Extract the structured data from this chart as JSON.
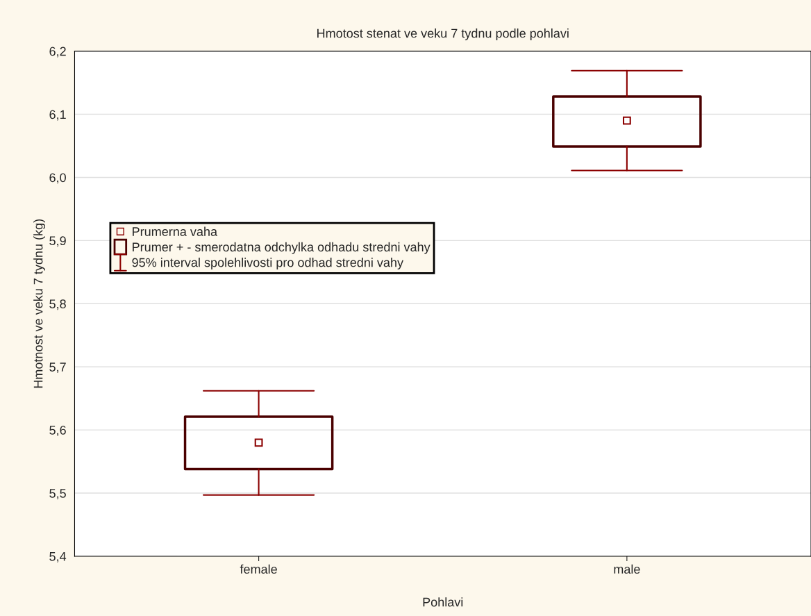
{
  "chart_data": {
    "type": "box",
    "title": "Hmotost stenat ve veku 7 tydnu podle pohlavi",
    "xlabel": "Pohlavi",
    "ylabel": "Hmotnost ve veku 7 tydnu (kg)",
    "categories": [
      "female",
      "male"
    ],
    "boxes": [
      {
        "low": 5.497,
        "q1": 5.538,
        "q3": 5.621,
        "high": 5.662,
        "mean": 5.58
      },
      {
        "low": 6.011,
        "q1": 6.049,
        "q3": 6.128,
        "high": 6.169,
        "mean": 6.09
      }
    ],
    "color": "#4a0000",
    "ylim": [
      5.4,
      6.2
    ],
    "yticks": [
      {
        "value": 5.4,
        "label": "5,4"
      },
      {
        "value": 5.5,
        "label": "5,5"
      },
      {
        "value": 5.6,
        "label": "5,6"
      },
      {
        "value": 5.7,
        "label": "5,7"
      },
      {
        "value": 5.8,
        "label": "5,8"
      },
      {
        "value": 5.9,
        "label": "5,9"
      },
      {
        "value": 6.0,
        "label": "6,0"
      },
      {
        "value": 6.1,
        "label": "6,1"
      },
      {
        "value": 6.2,
        "label": "6,2"
      }
    ],
    "grid": "y",
    "marker": "square",
    "annotations": [
      "Prumerna vaha",
      "Prumer + - smerodatna odchylka odhadu stredni vahy",
      "95% interval spolehlivosti pro odhad stredni vahy"
    ]
  }
}
